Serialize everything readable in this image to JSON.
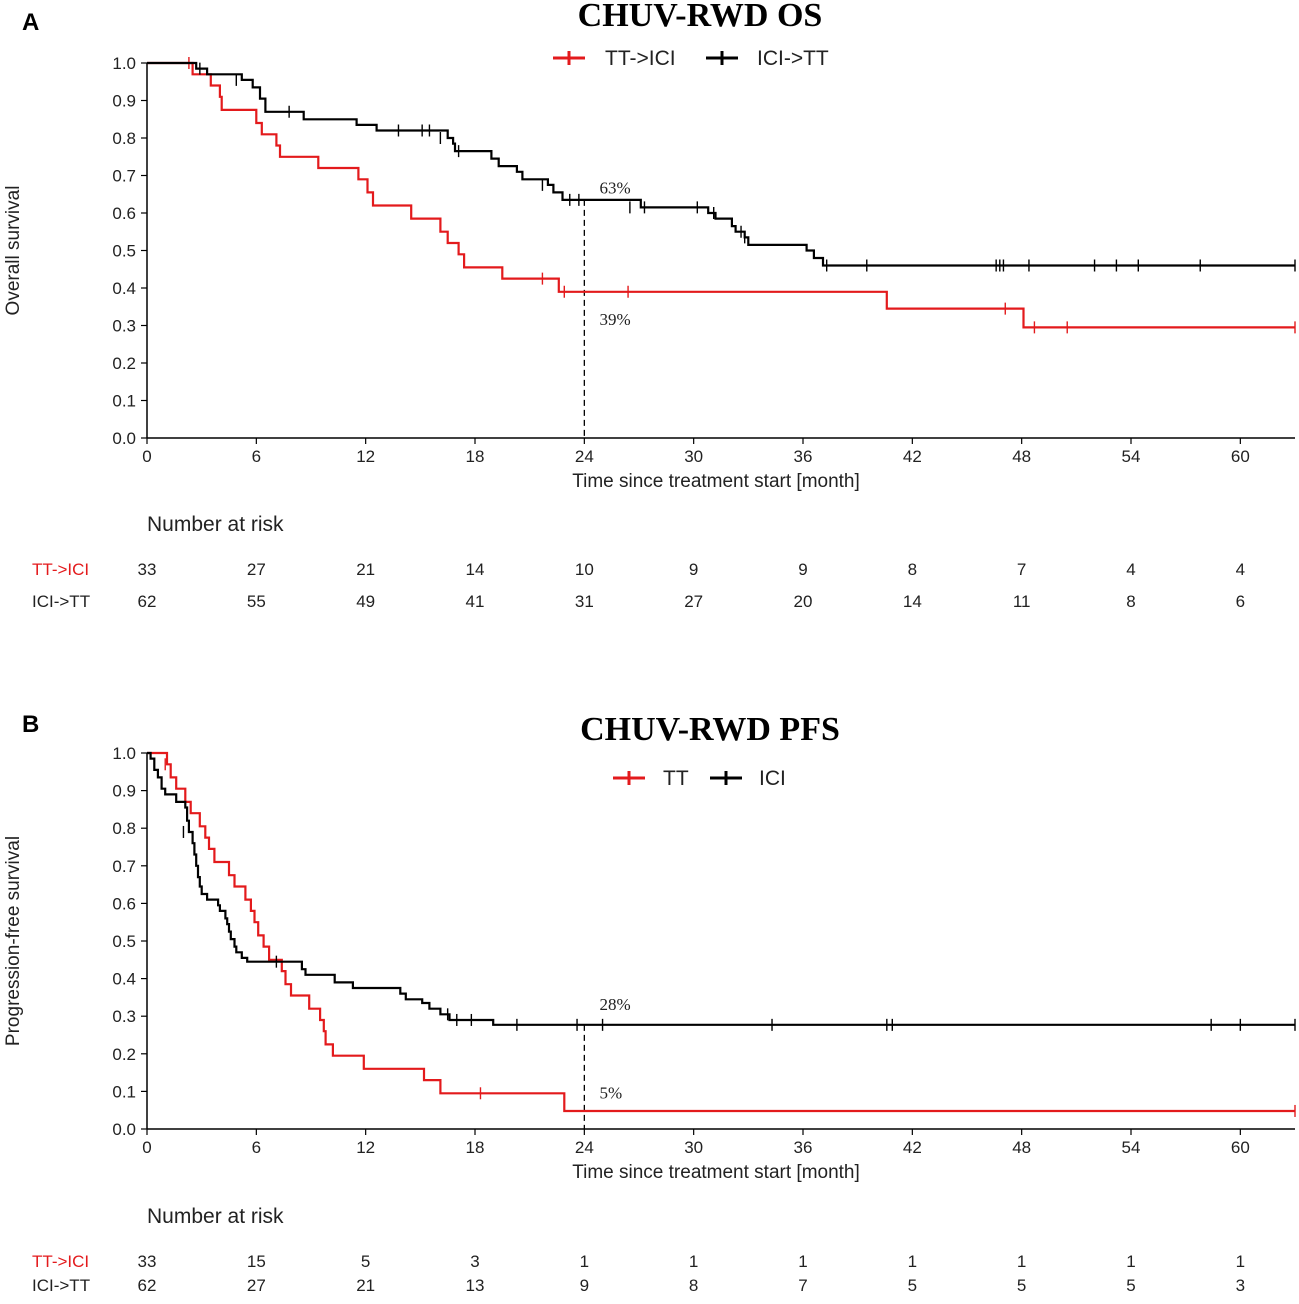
{
  "colors": {
    "tt": "#e31a1c",
    "ici": "#000000",
    "axis": "#000000"
  },
  "chart_data": [
    {
      "panel": "A",
      "type": "line",
      "title": "CHUV-RWD OS",
      "xlabel": "Time since treatment start [month]",
      "ylabel": "Overall survival",
      "xlim": [
        0,
        63
      ],
      "ylim": [
        0,
        1
      ],
      "xticks": [
        0,
        6,
        12,
        18,
        24,
        30,
        36,
        42,
        48,
        54,
        60
      ],
      "yticks": [
        "0.0",
        "0.1",
        "0.2",
        "0.3",
        "0.4",
        "0.5",
        "0.6",
        "0.7",
        "0.8",
        "0.9",
        "1.0"
      ],
      "legend": [
        "TT->ICI",
        "ICI->TT"
      ],
      "series": [
        {
          "name": "TT->ICI",
          "color_key": "tt",
          "steps": [
            [
              0,
              1.0
            ],
            [
              2.5,
              0.97
            ],
            [
              3.5,
              0.94
            ],
            [
              4.0,
              0.91
            ],
            [
              4.1,
              0.875
            ],
            [
              6.0,
              0.84
            ],
            [
              6.3,
              0.81
            ],
            [
              7.1,
              0.78
            ],
            [
              7.3,
              0.75
            ],
            [
              9.4,
              0.72
            ],
            [
              11.6,
              0.69
            ],
            [
              12.1,
              0.655
            ],
            [
              12.4,
              0.62
            ],
            [
              14.5,
              0.585
            ],
            [
              16.1,
              0.55
            ],
            [
              16.5,
              0.52
            ],
            [
              17.1,
              0.49
            ],
            [
              17.4,
              0.455
            ],
            [
              19.5,
              0.425
            ],
            [
              22.6,
              0.39
            ],
            [
              40.6,
              0.345
            ],
            [
              48.1,
              0.295
            ]
          ],
          "end_x": 63,
          "censors": [
            [
              2.3,
              1.0
            ],
            [
              21.7,
              0.425
            ],
            [
              22.9,
              0.39
            ],
            [
              26.4,
              0.39
            ],
            [
              47.1,
              0.345
            ],
            [
              48.7,
              0.295
            ],
            [
              50.5,
              0.295
            ],
            [
              63,
              0.295
            ]
          ]
        },
        {
          "name": "ICI->TT",
          "color_key": "ici",
          "steps": [
            [
              0,
              1.0
            ],
            [
              2.7,
              0.985
            ],
            [
              3.3,
              0.97
            ],
            [
              5.2,
              0.955
            ],
            [
              5.8,
              0.935
            ],
            [
              6.2,
              0.905
            ],
            [
              6.5,
              0.87
            ],
            [
              8.6,
              0.85
            ],
            [
              11.5,
              0.835
            ],
            [
              12.6,
              0.82
            ],
            [
              16.5,
              0.8
            ],
            [
              16.8,
              0.785
            ],
            [
              16.9,
              0.765
            ],
            [
              18.9,
              0.745
            ],
            [
              19.3,
              0.725
            ],
            [
              20.3,
              0.71
            ],
            [
              20.6,
              0.69
            ],
            [
              22.0,
              0.675
            ],
            [
              22.3,
              0.655
            ],
            [
              22.8,
              0.635
            ],
            [
              27.1,
              0.615
            ],
            [
              30.8,
              0.6
            ],
            [
              31.2,
              0.585
            ],
            [
              32.1,
              0.565
            ],
            [
              32.3,
              0.55
            ],
            [
              32.8,
              0.535
            ],
            [
              33.0,
              0.515
            ],
            [
              36.2,
              0.5
            ],
            [
              36.6,
              0.48
            ],
            [
              37.1,
              0.46
            ]
          ],
          "end_x": 63,
          "censors": [
            [
              2.9,
              0.985
            ],
            [
              4.9,
              0.955
            ],
            [
              7.8,
              0.87
            ],
            [
              13.8,
              0.82
            ],
            [
              15.1,
              0.82
            ],
            [
              15.5,
              0.82
            ],
            [
              16.1,
              0.8
            ],
            [
              17.1,
              0.765
            ],
            [
              21.7,
              0.675
            ],
            [
              23.2,
              0.635
            ],
            [
              23.7,
              0.635
            ],
            [
              26.5,
              0.615
            ],
            [
              27.3,
              0.615
            ],
            [
              30.2,
              0.615
            ],
            [
              31.1,
              0.6
            ],
            [
              32.6,
              0.55
            ],
            [
              32.8,
              0.535
            ],
            [
              37.3,
              0.46
            ],
            [
              39.5,
              0.46
            ],
            [
              46.6,
              0.46
            ],
            [
              46.8,
              0.46
            ],
            [
              47.0,
              0.46
            ],
            [
              48.4,
              0.46
            ],
            [
              52.0,
              0.46
            ],
            [
              53.2,
              0.46
            ],
            [
              54.4,
              0.46
            ],
            [
              57.8,
              0.46
            ],
            [
              63,
              0.46
            ]
          ]
        }
      ],
      "annotations": [
        {
          "text": "63%",
          "x": 24.5,
          "y": 0.665
        },
        {
          "text": "39%",
          "x": 24.5,
          "y": 0.315
        }
      ],
      "ref_line": {
        "x": 24,
        "y_top": 0.635
      },
      "risk_table": {
        "title": "Number at risk",
        "rows": [
          {
            "label": "TT->ICI",
            "color_key": "tt",
            "values": [
              33,
              27,
              21,
              14,
              10,
              9,
              9,
              8,
              7,
              4,
              4
            ]
          },
          {
            "label": "ICI->TT",
            "color_key": "ici",
            "values": [
              62,
              55,
              49,
              41,
              31,
              27,
              20,
              14,
              11,
              8,
              6
            ]
          }
        ]
      }
    },
    {
      "panel": "B",
      "type": "line",
      "title": "CHUV-RWD PFS",
      "xlabel": "Time since treatment start [month]",
      "ylabel": "Progression-free survival",
      "xlim": [
        0,
        63
      ],
      "ylim": [
        0,
        1
      ],
      "xticks": [
        0,
        6,
        12,
        18,
        24,
        30,
        36,
        42,
        48,
        54,
        60
      ],
      "yticks": [
        "0.0",
        "0.1",
        "0.2",
        "0.3",
        "0.4",
        "0.5",
        "0.6",
        "0.7",
        "0.8",
        "0.9",
        "1.0"
      ],
      "legend": [
        "TT",
        "ICI"
      ],
      "series": [
        {
          "name": "TT",
          "color_key": "tt",
          "steps": [
            [
              0,
              1.0
            ],
            [
              1.1,
              0.97
            ],
            [
              1.3,
              0.935
            ],
            [
              1.6,
              0.905
            ],
            [
              2.1,
              0.87
            ],
            [
              2.4,
              0.84
            ],
            [
              2.9,
              0.805
            ],
            [
              3.2,
              0.775
            ],
            [
              3.4,
              0.745
            ],
            [
              3.7,
              0.71
            ],
            [
              4.5,
              0.675
            ],
            [
              4.8,
              0.645
            ],
            [
              5.4,
              0.61
            ],
            [
              5.7,
              0.58
            ],
            [
              5.9,
              0.55
            ],
            [
              6.1,
              0.515
            ],
            [
              6.4,
              0.485
            ],
            [
              6.7,
              0.45
            ],
            [
              7.4,
              0.42
            ],
            [
              7.6,
              0.385
            ],
            [
              7.9,
              0.355
            ],
            [
              8.9,
              0.32
            ],
            [
              9.5,
              0.29
            ],
            [
              9.7,
              0.26
            ],
            [
              9.8,
              0.225
            ],
            [
              10.2,
              0.195
            ],
            [
              11.9,
              0.16
            ],
            [
              15.2,
              0.13
            ],
            [
              16.1,
              0.095
            ],
            [
              22.9,
              0.048
            ]
          ],
          "end_x": 63,
          "censors": [
            [
              1.0,
              0.97
            ],
            [
              18.3,
              0.095
            ],
            [
              63,
              0.048
            ]
          ]
        },
        {
          "name": "ICI",
          "color_key": "ici",
          "steps": [
            [
              0,
              1.0
            ],
            [
              0.2,
              0.985
            ],
            [
              0.4,
              0.955
            ],
            [
              0.6,
              0.935
            ],
            [
              0.8,
              0.905
            ],
            [
              1.0,
              0.89
            ],
            [
              1.6,
              0.87
            ],
            [
              2.1,
              0.855
            ],
            [
              2.2,
              0.82
            ],
            [
              2.3,
              0.79
            ],
            [
              2.5,
              0.76
            ],
            [
              2.6,
              0.73
            ],
            [
              2.7,
              0.7
            ],
            [
              2.8,
              0.67
            ],
            [
              2.9,
              0.645
            ],
            [
              3.0,
              0.625
            ],
            [
              3.3,
              0.61
            ],
            [
              3.9,
              0.595
            ],
            [
              4.0,
              0.58
            ],
            [
              4.3,
              0.56
            ],
            [
              4.4,
              0.545
            ],
            [
              4.5,
              0.525
            ],
            [
              4.6,
              0.505
            ],
            [
              4.8,
              0.485
            ],
            [
              4.9,
              0.47
            ],
            [
              5.2,
              0.455
            ],
            [
              5.5,
              0.445
            ],
            [
              8.5,
              0.425
            ],
            [
              8.7,
              0.41
            ],
            [
              10.3,
              0.39
            ],
            [
              11.3,
              0.375
            ],
            [
              13.9,
              0.36
            ],
            [
              14.2,
              0.345
            ],
            [
              15.1,
              0.335
            ],
            [
              15.5,
              0.32
            ],
            [
              16.1,
              0.305
            ],
            [
              16.6,
              0.29
            ],
            [
              19.0,
              0.277
            ]
          ],
          "end_x": 63,
          "censors": [
            [
              2.0,
              0.79
            ],
            [
              7.1,
              0.445
            ],
            [
              16.5,
              0.305
            ],
            [
              17.0,
              0.29
            ],
            [
              17.8,
              0.29
            ],
            [
              20.3,
              0.277
            ],
            [
              23.6,
              0.277
            ],
            [
              25.0,
              0.277
            ],
            [
              34.3,
              0.277
            ],
            [
              40.6,
              0.277
            ],
            [
              40.9,
              0.277
            ],
            [
              58.4,
              0.277
            ],
            [
              60.0,
              0.277
            ],
            [
              63,
              0.277
            ]
          ]
        }
      ],
      "annotations": [
        {
          "text": "28%",
          "x": 24.5,
          "y": 0.33
        },
        {
          "text": "5%",
          "x": 24.5,
          "y": 0.095
        }
      ],
      "ref_line": {
        "x": 24,
        "y_top": 0.277
      },
      "risk_table": {
        "title": "Number at risk",
        "rows": [
          {
            "label": "TT->ICI",
            "color_key": "tt",
            "values": [
              33,
              15,
              5,
              3,
              1,
              1,
              1,
              1,
              1,
              1,
              1
            ]
          },
          {
            "label": "ICI->TT",
            "color_key": "ici",
            "values": [
              62,
              27,
              21,
              13,
              9,
              8,
              7,
              5,
              5,
              5,
              3
            ]
          }
        ]
      }
    }
  ]
}
